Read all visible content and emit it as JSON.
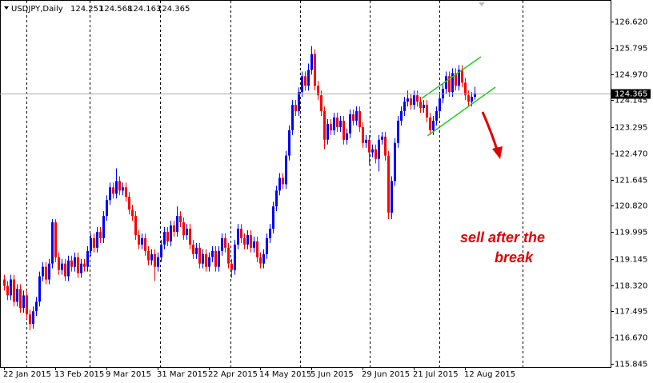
{
  "chart_data": {
    "type": "candlestick",
    "title": "USDJPY,Daily",
    "annotation": [
      "sell after the",
      "break"
    ],
    "up_color": "#0000ff",
    "down_color": "#ff0000",
    "categories": [
      "22 Jan 2015",
      null,
      null,
      null,
      null,
      null,
      null,
      null,
      null,
      null,
      null,
      null,
      null,
      null,
      null,
      null,
      "13 Feb 2015",
      null,
      null,
      null,
      null,
      null,
      null,
      null,
      null,
      null,
      null,
      null,
      null,
      null,
      null,
      null,
      "9 Mar 2015",
      null,
      null,
      null,
      null,
      null,
      null,
      null,
      null,
      null,
      null,
      null,
      null,
      null,
      null,
      null,
      "31 Mar 2015",
      null,
      null,
      null,
      null,
      null,
      null,
      null,
      null,
      null,
      null,
      null,
      null,
      null,
      null,
      null,
      "22 Apr 2015",
      null,
      null,
      null,
      null,
      null,
      null,
      null,
      null,
      null,
      null,
      null,
      null,
      null,
      null,
      null,
      "14 May 2015",
      null,
      null,
      null,
      null,
      null,
      null,
      null,
      null,
      null,
      null,
      null,
      null,
      null,
      null,
      null,
      "5 Jun 2015",
      null,
      null,
      null,
      null,
      null,
      null,
      null,
      null,
      null,
      null,
      null,
      null,
      null,
      null,
      null,
      "29 Jun 2015",
      null,
      null,
      null,
      null,
      null,
      null,
      null,
      null,
      null,
      null,
      null,
      null,
      null,
      null,
      null,
      "21 Jul 2015",
      null,
      null,
      null,
      null,
      null,
      null,
      null,
      null,
      null,
      null,
      null,
      null,
      null,
      null,
      null,
      "12 Aug 2015",
      null,
      null,
      null
    ],
    "open": [
      118.5,
      118.3,
      118.0,
      118.5,
      117.8,
      118.2,
      117.6,
      118.0,
      117.4,
      117.1,
      117.5,
      117.8,
      118.6,
      118.9,
      118.5,
      119.0,
      120.3,
      119.2,
      118.8,
      119.0,
      118.6,
      119.1,
      118.9,
      119.2,
      118.7,
      119.0,
      118.9,
      119.4,
      119.8,
      119.5,
      120.0,
      119.8,
      120.5,
      121.0,
      121.4,
      121.2,
      121.6,
      121.3,
      121.4,
      121.1,
      120.7,
      120.5,
      119.9,
      119.6,
      119.8,
      119.4,
      119.1,
      119.3,
      118.9,
      119.2,
      119.6,
      120.0,
      119.7,
      120.2,
      120.0,
      120.5,
      120.3,
      119.9,
      120.1,
      119.6,
      119.3,
      119.5,
      119.0,
      119.3,
      118.9,
      119.2,
      119.4,
      118.9,
      119.4,
      119.8,
      119.5,
      119.0,
      118.8,
      119.6,
      120.1,
      119.8,
      119.6,
      119.9,
      119.5,
      119.7,
      119.2,
      119.0,
      119.3,
      119.8,
      120.1,
      120.8,
      121.3,
      121.7,
      121.5,
      122.4,
      123.2,
      124.0,
      123.8,
      124.4,
      124.9,
      124.6,
      125.1,
      125.6,
      124.6,
      124.3,
      123.8,
      122.9,
      123.4,
      123.2,
      123.6,
      123.3,
      123.5,
      122.9,
      123.1,
      123.7,
      123.5,
      123.8,
      123.3,
      122.8,
      122.9,
      122.5,
      122.6,
      122.3,
      122.9,
      123.0,
      122.4,
      120.6,
      121.6,
      122.8,
      123.5,
      123.8,
      124.1,
      124.2,
      124.0,
      124.3,
      124.1,
      123.9,
      124.0,
      123.6,
      123.2,
      123.5,
      123.8,
      124.2,
      124.5,
      124.9,
      124.4,
      125.0,
      124.6,
      125.1,
      124.7,
      124.3,
      124.1,
      124.251
    ],
    "high": [
      118.65,
      118.45,
      118.65,
      118.65,
      118.35,
      118.35,
      118.15,
      118.15,
      117.55,
      117.65,
      117.95,
      118.75,
      119.05,
      119.05,
      119.15,
      120.4,
      120.4,
      119.35,
      119.15,
      119.15,
      119.25,
      119.25,
      119.35,
      119.35,
      119.15,
      119.15,
      119.55,
      119.95,
      119.95,
      120.15,
      120.15,
      120.65,
      121.15,
      121.55,
      121.55,
      122.0,
      121.75,
      121.55,
      121.55,
      121.25,
      120.85,
      120.65,
      120.05,
      119.95,
      119.95,
      119.55,
      119.45,
      119.45,
      119.35,
      119.75,
      120.15,
      120.15,
      120.35,
      120.35,
      120.8,
      120.65,
      120.45,
      120.25,
      120.25,
      119.75,
      119.65,
      119.65,
      119.45,
      119.45,
      119.35,
      119.55,
      119.55,
      119.55,
      119.95,
      119.95,
      119.65,
      119.15,
      119.75,
      120.25,
      120.25,
      119.95,
      120.05,
      120.05,
      119.85,
      119.85,
      119.35,
      119.45,
      119.95,
      120.25,
      120.95,
      121.45,
      121.85,
      121.85,
      122.55,
      123.35,
      124.15,
      124.15,
      124.55,
      125.05,
      125.05,
      125.3,
      125.85,
      125.75,
      124.75,
      124.45,
      123.95,
      123.55,
      123.55,
      123.75,
      123.75,
      123.65,
      123.65,
      123.25,
      123.85,
      123.85,
      123.95,
      123.95,
      123.45,
      123.05,
      123.05,
      122.75,
      122.75,
      123.05,
      123.15,
      123.15,
      122.55,
      121.75,
      122.95,
      123.65,
      123.95,
      124.25,
      124.45,
      124.35,
      124.45,
      124.45,
      124.25,
      124.15,
      124.15,
      123.75,
      123.65,
      123.95,
      124.35,
      124.65,
      125.05,
      125.05,
      125.15,
      125.15,
      125.25,
      125.25,
      124.85,
      124.45,
      124.4,
      124.568
    ],
    "low": [
      118.15,
      117.85,
      117.85,
      117.65,
      117.65,
      117.45,
      117.45,
      117.25,
      116.9,
      116.95,
      117.35,
      117.65,
      118.45,
      118.35,
      118.35,
      118.85,
      119.05,
      118.65,
      118.65,
      118.45,
      118.45,
      118.75,
      118.75,
      118.55,
      118.55,
      118.75,
      118.75,
      119.25,
      119.35,
      119.35,
      119.65,
      119.65,
      120.35,
      120.85,
      121.05,
      121.05,
      121.15,
      121.15,
      120.95,
      120.55,
      120.35,
      119.75,
      119.45,
      119.45,
      119.25,
      118.95,
      118.95,
      118.45,
      118.75,
      119.05,
      119.45,
      119.55,
      119.55,
      119.85,
      119.85,
      120.15,
      119.75,
      119.75,
      119.45,
      119.15,
      119.15,
      118.85,
      118.85,
      118.75,
      118.75,
      119.05,
      118.75,
      118.75,
      119.25,
      119.35,
      118.85,
      118.55,
      118.65,
      119.45,
      119.65,
      119.45,
      119.45,
      119.35,
      119.35,
      119.05,
      118.85,
      118.85,
      119.15,
      119.65,
      119.95,
      120.65,
      121.15,
      121.35,
      121.35,
      122.25,
      123.05,
      123.65,
      123.65,
      124.25,
      124.45,
      124.45,
      124.95,
      124.45,
      124.15,
      123.65,
      122.6,
      122.75,
      123.05,
      123.05,
      123.15,
      123.15,
      122.75,
      122.75,
      122.95,
      123.35,
      123.35,
      123.15,
      122.65,
      122.65,
      122.1,
      122.35,
      122.15,
      121.9,
      122.75,
      122.25,
      120.4,
      120.4,
      121.45,
      122.65,
      123.35,
      123.65,
      123.95,
      123.85,
      123.85,
      123.95,
      123.75,
      123.75,
      123.45,
      123.05,
      123.05,
      123.35,
      123.65,
      124.05,
      124.35,
      124.25,
      124.25,
      124.45,
      124.45,
      124.55,
      124.15,
      123.95,
      123.95,
      124.163
    ],
    "close": [
      118.3,
      118.0,
      118.5,
      117.8,
      118.2,
      117.6,
      118.0,
      117.4,
      117.1,
      117.5,
      117.8,
      118.6,
      118.9,
      118.5,
      119.0,
      120.3,
      119.2,
      118.8,
      119.0,
      118.6,
      119.1,
      118.9,
      119.2,
      118.7,
      119.0,
      118.9,
      119.4,
      119.8,
      119.5,
      120.0,
      119.8,
      120.5,
      121.0,
      121.4,
      121.2,
      121.6,
      121.3,
      121.4,
      121.1,
      120.7,
      120.5,
      119.9,
      119.6,
      119.8,
      119.4,
      119.1,
      119.3,
      118.9,
      119.2,
      119.6,
      120.0,
      119.7,
      120.2,
      120.0,
      120.5,
      120.3,
      119.9,
      120.1,
      119.6,
      119.3,
      119.5,
      119.0,
      119.3,
      118.9,
      119.2,
      119.4,
      118.9,
      119.4,
      119.8,
      119.5,
      119.0,
      118.8,
      119.6,
      120.1,
      119.8,
      119.6,
      119.9,
      119.5,
      119.7,
      119.2,
      119.0,
      119.3,
      119.8,
      120.1,
      120.8,
      121.3,
      121.7,
      121.5,
      122.4,
      123.2,
      124.0,
      123.8,
      124.4,
      124.9,
      124.6,
      125.1,
      125.6,
      124.6,
      124.3,
      123.8,
      122.9,
      123.4,
      123.2,
      123.6,
      123.3,
      123.5,
      122.9,
      123.1,
      123.7,
      123.5,
      123.8,
      123.3,
      122.8,
      122.9,
      122.5,
      122.6,
      122.3,
      122.9,
      123.0,
      122.4,
      120.6,
      121.6,
      122.8,
      123.5,
      123.8,
      124.1,
      124.2,
      124.0,
      124.3,
      124.1,
      123.9,
      124.0,
      123.6,
      123.2,
      123.5,
      123.8,
      124.2,
      124.5,
      124.9,
      124.4,
      125.0,
      124.6,
      125.1,
      124.7,
      124.3,
      124.1,
      124.251,
      124.365
    ],
    "ylim": [
      115.744,
      127.275
    ],
    "yticks": [
      {
        "value": 126.62,
        "label": "126.620"
      },
      125.795,
      {
        "value": 124.97,
        "label": "124.970"
      },
      124.145,
      123.295,
      {
        "value": 122.47,
        "label": "122.470"
      },
      121.645,
      {
        "value": 120.82,
        "label": "120.820"
      },
      119.995,
      119.145,
      {
        "value": 118.32,
        "label": "118.320"
      },
      117.495,
      {
        "value": 116.67,
        "label": "116.670"
      },
      115.845
    ]
  }
}
